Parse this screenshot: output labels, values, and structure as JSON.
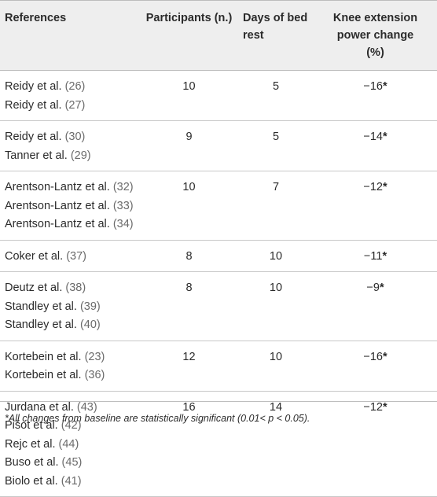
{
  "headers": {
    "references": "References",
    "participants": "Participants (n.)",
    "days_line1": "Days of bed",
    "days_line2": "rest",
    "knee_line1": "Knee extension",
    "knee_line2": "power change",
    "knee_line3": "(%)"
  },
  "rows": [
    {
      "refs": [
        {
          "name": "Reidy et al.",
          "num": "(26)"
        },
        {
          "name": "Reidy et al.",
          "num": "(27)"
        }
      ],
      "participants": "10",
      "days": "5",
      "change": "−16",
      "mark": "*"
    },
    {
      "refs": [
        {
          "name": "Reidy et al.",
          "num": "(30)"
        },
        {
          "name": "Tanner et al.",
          "num": "(29)"
        }
      ],
      "participants": "9",
      "days": "5",
      "change": "−14",
      "mark": "*"
    },
    {
      "refs": [
        {
          "name": "Arentson-Lantz et al.",
          "num": "(32)"
        },
        {
          "name": "Arentson-Lantz et al.",
          "num": "(33)"
        },
        {
          "name": "Arentson-Lantz et al.",
          "num": "(34)"
        }
      ],
      "participants": "10",
      "days": "7",
      "change": "−12",
      "mark": "*"
    },
    {
      "refs": [
        {
          "name": "Coker et al.",
          "num": "(37)"
        }
      ],
      "participants": "8",
      "days": "10",
      "change": "−11",
      "mark": "*"
    },
    {
      "refs": [
        {
          "name": "Deutz et al.",
          "num": "(38)"
        },
        {
          "name": "Standley et al.",
          "num": "(39)"
        },
        {
          "name": "Standley et al.",
          "num": "(40)"
        }
      ],
      "participants": "8",
      "days": "10",
      "change": "−9",
      "mark": "*"
    },
    {
      "refs": [
        {
          "name": "Kortebein et al.",
          "num": "(23)"
        },
        {
          "name": "Kortebein et al.",
          "num": "(36)"
        }
      ],
      "participants": "12",
      "days": "10",
      "change": "−16",
      "mark": "*"
    },
    {
      "refs": [
        {
          "name": "Jurdana et al.",
          "num": "(43)"
        },
        {
          "name": "Pišot et al.",
          "num": "(42)"
        },
        {
          "name": "Rejc et al.",
          "num": "(44)"
        },
        {
          "name": "Buso et al.",
          "num": "(45)"
        },
        {
          "name": "Biolo et al.",
          "num": "(41)"
        }
      ],
      "participants": "16",
      "days": "14",
      "change": "−12",
      "mark": "*"
    }
  ],
  "footnote": "*All changes from baseline are statistically significant (0.01< p < 0.05)."
}
